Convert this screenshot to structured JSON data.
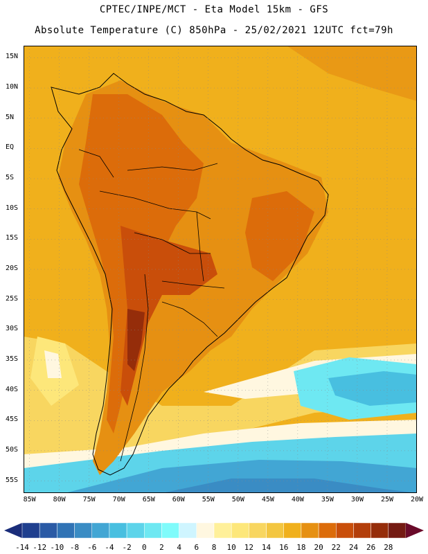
{
  "header": {
    "line1": "CPTEC/INPE/MCT -  Eta Model 15km - GFS",
    "line2": "Absolute Temperature (C) 850hPa - 25/02/2021 12UTC fct=79h"
  },
  "map": {
    "lat_ticks": [
      "15N",
      "10N",
      "5N",
      "EQ",
      "5S",
      "10S",
      "15S",
      "20S",
      "25S",
      "30S",
      "35S",
      "40S",
      "45S",
      "50S",
      "55S"
    ],
    "lon_ticks": [
      "85W",
      "80W",
      "75W",
      "70W",
      "65W",
      "60W",
      "55W",
      "50W",
      "45W",
      "40W",
      "35W",
      "30W",
      "25W",
      "20W"
    ],
    "lat_range": [
      17,
      -57
    ],
    "lon_range": [
      -86,
      -20
    ],
    "grid": true,
    "background_color": "#f0b01c"
  },
  "colorbar": {
    "labels": [
      "-14",
      "-12",
      "-10",
      "-8",
      "-6",
      "-4",
      "-2",
      "0",
      "2",
      "4",
      "6",
      "8",
      "10",
      "12",
      "14",
      "16",
      "18",
      "20",
      "22",
      "24",
      "26",
      "28"
    ],
    "colors": [
      "#1f3f8f",
      "#2a5aa5",
      "#3073b5",
      "#3a8cc4",
      "#42a6d4",
      "#48bfe0",
      "#5dd4ea",
      "#6ee8f2",
      "#7ffbfb",
      "#cff5ff",
      "#fff7e0",
      "#fff09a",
      "#fde77a",
      "#f8d660",
      "#f3c640",
      "#f0b01c",
      "#e69012",
      "#dc6c0a",
      "#c94e0a",
      "#b33e0a",
      "#952d0a",
      "#741a12"
    ],
    "under_color": "#1a2d7a",
    "over_color": "#6a0a2a"
  }
}
